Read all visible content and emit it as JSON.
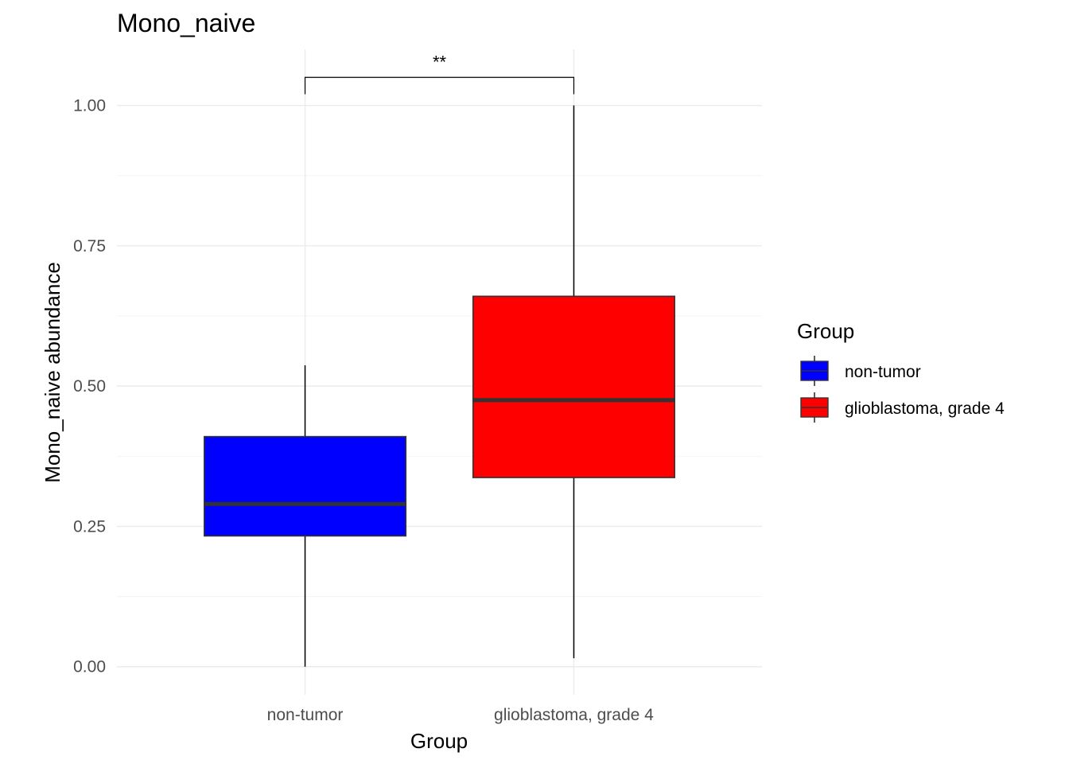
{
  "chart_data": {
    "type": "boxplot",
    "title": "Mono_naive",
    "xlabel": "Group",
    "ylabel": "Mono_naive abundance",
    "ylim": [
      -0.05,
      1.1
    ],
    "yticks": [
      0.0,
      0.25,
      0.5,
      0.75,
      1.0
    ],
    "ytick_labels": [
      "0.00",
      "0.25",
      "0.50",
      "0.75",
      "1.00"
    ],
    "categories": [
      "non-tumor",
      "glioblastoma, grade 4"
    ],
    "series": [
      {
        "name": "non-tumor",
        "color": "#0000ff",
        "whisker_low": 0.0,
        "q1": 0.233,
        "median": 0.29,
        "q3": 0.41,
        "whisker_high": 0.537
      },
      {
        "name": "glioblastoma, grade 4",
        "color": "#ff0000",
        "whisker_low": 0.015,
        "q1": 0.337,
        "median": 0.475,
        "q3": 0.66,
        "whisker_high": 1.0
      }
    ],
    "significance": {
      "label": "**",
      "from": "non-tumor",
      "to": "glioblastoma, grade 4",
      "y": 1.05
    },
    "legend": {
      "title": "Group",
      "position": "right"
    },
    "grid": true
  }
}
